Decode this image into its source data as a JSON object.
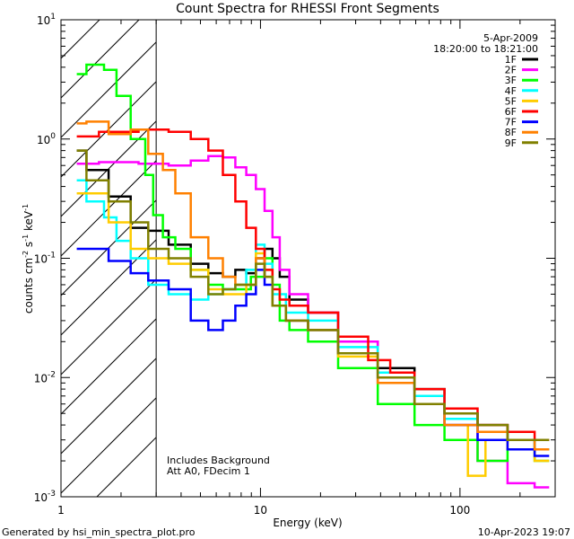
{
  "chart_data": {
    "type": "line",
    "title": "Count Spectra for RHESSI Front Segments",
    "xlabel": "Energy (keV)",
    "ylabel": {
      "base": "counts cm",
      "sup1": "-2",
      "mid1": " s",
      "sup2": "-1",
      "mid2": " keV",
      "sup3": "-1"
    },
    "xscale": "log",
    "yscale": "log",
    "xlim": [
      1,
      300
    ],
    "ylim": [
      0.001,
      10
    ],
    "x_ticks": [
      {
        "value": 1,
        "label": "1"
      },
      {
        "value": 10,
        "label": "10"
      },
      {
        "value": 100,
        "label": "100"
      }
    ],
    "y_ticks": [
      {
        "value": 0.001,
        "base": "10",
        "exp": "-3"
      },
      {
        "value": 0.01,
        "base": "10",
        "exp": "-2"
      },
      {
        "value": 0.1,
        "base": "10",
        "exp": "-1"
      },
      {
        "value": 1,
        "base": "10",
        "exp": "0"
      },
      {
        "value": 10,
        "base": "10",
        "exp": "1"
      }
    ],
    "hatched_region_x": [
      1,
      3
    ],
    "date": "5-Apr-2009",
    "time_range": "18:20:00 to 18:21:00",
    "annotation_lines": [
      "Includes Background",
      "Att A0, FDecim 1"
    ],
    "footer_left": "Generated by hsi_min_spectra_plot.pro",
    "footer_right": "10-Apr-2023 19:07",
    "series": [
      {
        "name": "1F",
        "color": "#000000",
        "points": [
          [
            1.2,
            0.8
          ],
          [
            1.5,
            0.55
          ],
          [
            2,
            0.33
          ],
          [
            2.5,
            0.18
          ],
          [
            3,
            0.17
          ],
          [
            4,
            0.13
          ],
          [
            5,
            0.09
          ],
          [
            6,
            0.075
          ],
          [
            7,
            0.07
          ],
          [
            8,
            0.08
          ],
          [
            9,
            0.075
          ],
          [
            10,
            0.1
          ],
          [
            11,
            0.12
          ],
          [
            12,
            0.1
          ],
          [
            13,
            0.07
          ],
          [
            15,
            0.045
          ],
          [
            20,
            0.035
          ],
          [
            30,
            0.02
          ],
          [
            50,
            0.012
          ],
          [
            70,
            0.008
          ],
          [
            100,
            0.005
          ],
          [
            150,
            0.004
          ],
          [
            200,
            0.003
          ],
          [
            280,
            0.0025
          ]
        ]
      },
      {
        "name": "2F",
        "color": "#ff00ff",
        "points": [
          [
            1.2,
            0.62
          ],
          [
            2,
            0.64
          ],
          [
            3,
            0.62
          ],
          [
            4,
            0.6
          ],
          [
            5,
            0.66
          ],
          [
            6,
            0.72
          ],
          [
            7,
            0.7
          ],
          [
            8,
            0.58
          ],
          [
            9,
            0.5
          ],
          [
            10,
            0.38
          ],
          [
            11,
            0.25
          ],
          [
            12,
            0.15
          ],
          [
            13,
            0.08
          ],
          [
            15,
            0.05
          ],
          [
            20,
            0.035
          ],
          [
            30,
            0.02
          ],
          [
            50,
            0.01
          ],
          [
            70,
            0.006
          ],
          [
            100,
            0.004
          ],
          [
            150,
            0.002
          ],
          [
            200,
            0.0013
          ],
          [
            280,
            0.0012
          ]
        ]
      },
      {
        "name": "3F",
        "color": "#00ff00",
        "points": [
          [
            1.2,
            3.5
          ],
          [
            1.5,
            4.2
          ],
          [
            1.8,
            3.8
          ],
          [
            2,
            2.3
          ],
          [
            2.5,
            1.0
          ],
          [
            2.8,
            0.5
          ],
          [
            3,
            0.23
          ],
          [
            3.5,
            0.15
          ],
          [
            4,
            0.12
          ],
          [
            5,
            0.08
          ],
          [
            6,
            0.06
          ],
          [
            7,
            0.055
          ],
          [
            8,
            0.055
          ],
          [
            10,
            0.07
          ],
          [
            11,
            0.1
          ],
          [
            12,
            0.06
          ],
          [
            13,
            0.03
          ],
          [
            15,
            0.025
          ],
          [
            20,
            0.02
          ],
          [
            30,
            0.012
          ],
          [
            50,
            0.006
          ],
          [
            70,
            0.004
          ],
          [
            100,
            0.003
          ],
          [
            150,
            0.002
          ],
          [
            200,
            0.0025
          ],
          [
            280,
            0.002
          ]
        ]
      },
      {
        "name": "4F",
        "color": "#00ffff",
        "points": [
          [
            1.2,
            0.45
          ],
          [
            1.5,
            0.3
          ],
          [
            1.8,
            0.22
          ],
          [
            2,
            0.14
          ],
          [
            2.5,
            0.1
          ],
          [
            3,
            0.06
          ],
          [
            4,
            0.05
          ],
          [
            5,
            0.045
          ],
          [
            6,
            0.05
          ],
          [
            7,
            0.055
          ],
          [
            8,
            0.06
          ],
          [
            9,
            0.08
          ],
          [
            10,
            0.13
          ],
          [
            11,
            0.09
          ],
          [
            12,
            0.05
          ],
          [
            15,
            0.035
          ],
          [
            20,
            0.03
          ],
          [
            30,
            0.018
          ],
          [
            50,
            0.011
          ],
          [
            70,
            0.007
          ],
          [
            100,
            0.0045
          ],
          [
            150,
            0.0035
          ],
          [
            200,
            0.003
          ],
          [
            280,
            0.0025
          ]
        ]
      },
      {
        "name": "5F",
        "color": "#ffcc00",
        "points": [
          [
            1.2,
            0.35
          ],
          [
            1.5,
            0.35
          ],
          [
            2,
            0.2
          ],
          [
            2.5,
            0.12
          ],
          [
            3,
            0.1
          ],
          [
            4,
            0.09
          ],
          [
            5,
            0.08
          ],
          [
            6,
            0.055
          ],
          [
            7,
            0.05
          ],
          [
            8,
            0.05
          ],
          [
            9,
            0.06
          ],
          [
            10,
            0.11
          ],
          [
            11,
            0.08
          ],
          [
            12,
            0.04
          ],
          [
            15,
            0.03
          ],
          [
            20,
            0.025
          ],
          [
            30,
            0.015
          ],
          [
            50,
            0.009
          ],
          [
            70,
            0.006
          ],
          [
            100,
            0.004
          ],
          [
            120,
            0.0015
          ],
          [
            150,
            0.003
          ],
          [
            200,
            0.0025
          ],
          [
            280,
            0.002
          ]
        ]
      },
      {
        "name": "6F",
        "color": "#ff0000",
        "points": [
          [
            1.2,
            1.05
          ],
          [
            2,
            1.15
          ],
          [
            3,
            1.2
          ],
          [
            4,
            1.15
          ],
          [
            5,
            1.0
          ],
          [
            6,
            0.8
          ],
          [
            7,
            0.5
          ],
          [
            8,
            0.3
          ],
          [
            9,
            0.18
          ],
          [
            10,
            0.12
          ],
          [
            11,
            0.08
          ],
          [
            12,
            0.055
          ],
          [
            13,
            0.045
          ],
          [
            15,
            0.04
          ],
          [
            20,
            0.035
          ],
          [
            30,
            0.022
          ],
          [
            40,
            0.014
          ],
          [
            50,
            0.011
          ],
          [
            70,
            0.008
          ],
          [
            100,
            0.0055
          ],
          [
            150,
            0.004
          ],
          [
            200,
            0.0035
          ],
          [
            280,
            0.003
          ]
        ]
      },
      {
        "name": "7F",
        "color": "#0000ff",
        "points": [
          [
            1.2,
            0.12
          ],
          [
            1.5,
            0.12
          ],
          [
            2,
            0.095
          ],
          [
            2.5,
            0.075
          ],
          [
            3,
            0.065
          ],
          [
            4,
            0.055
          ],
          [
            5,
            0.03
          ],
          [
            6,
            0.025
          ],
          [
            7,
            0.03
          ],
          [
            8,
            0.04
          ],
          [
            9,
            0.05
          ],
          [
            10,
            0.08
          ],
          [
            11,
            0.06
          ],
          [
            12,
            0.04
          ],
          [
            15,
            0.03
          ],
          [
            20,
            0.025
          ],
          [
            30,
            0.016
          ],
          [
            50,
            0.009
          ],
          [
            70,
            0.006
          ],
          [
            100,
            0.004
          ],
          [
            150,
            0.003
          ],
          [
            200,
            0.0025
          ],
          [
            280,
            0.0022
          ]
        ]
      },
      {
        "name": "8F",
        "color": "#ff8000",
        "points": [
          [
            1.2,
            1.35
          ],
          [
            1.5,
            1.4
          ],
          [
            2,
            1.1
          ],
          [
            2.5,
            1.2
          ],
          [
            3,
            0.75
          ],
          [
            3.5,
            0.55
          ],
          [
            4,
            0.35
          ],
          [
            5,
            0.15
          ],
          [
            6,
            0.1
          ],
          [
            7,
            0.07
          ],
          [
            8,
            0.06
          ],
          [
            9,
            0.06
          ],
          [
            10,
            0.1
          ],
          [
            11,
            0.07
          ],
          [
            12,
            0.04
          ],
          [
            15,
            0.03
          ],
          [
            20,
            0.025
          ],
          [
            30,
            0.016
          ],
          [
            50,
            0.009
          ],
          [
            70,
            0.006
          ],
          [
            100,
            0.004
          ],
          [
            150,
            0.0035
          ],
          [
            200,
            0.003
          ],
          [
            280,
            0.0025
          ]
        ]
      },
      {
        "name": "9F",
        "color": "#808000",
        "points": [
          [
            1.2,
            0.8
          ],
          [
            1.5,
            0.45
          ],
          [
            2,
            0.3
          ],
          [
            2.5,
            0.2
          ],
          [
            3,
            0.12
          ],
          [
            4,
            0.1
          ],
          [
            5,
            0.07
          ],
          [
            6,
            0.05
          ],
          [
            7,
            0.055
          ],
          [
            8,
            0.06
          ],
          [
            9,
            0.06
          ],
          [
            10,
            0.09
          ],
          [
            11,
            0.07
          ],
          [
            12,
            0.04
          ],
          [
            15,
            0.03
          ],
          [
            20,
            0.025
          ],
          [
            30,
            0.016
          ],
          [
            50,
            0.01
          ],
          [
            70,
            0.006
          ],
          [
            100,
            0.005
          ],
          [
            150,
            0.004
          ],
          [
            200,
            0.003
          ],
          [
            280,
            0.003
          ]
        ]
      }
    ]
  }
}
